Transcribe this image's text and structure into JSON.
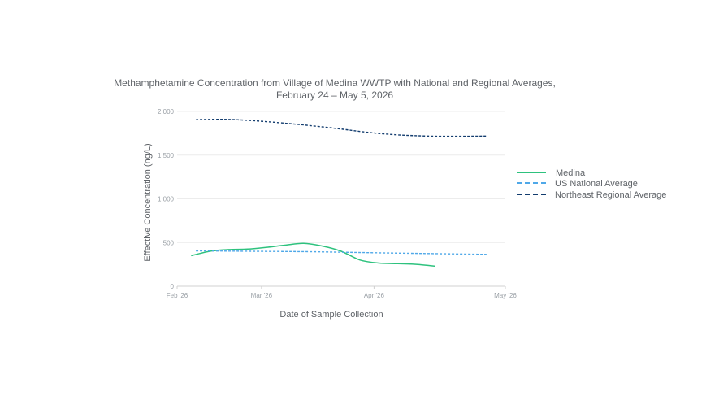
{
  "chart_data": {
    "type": "line",
    "title_line1": "Methamphetamine Concentration from Village of Medina WWTP with National and Regional Averages,",
    "title_line2": "February 24 – May 5, 2026",
    "xlabel": "Date of Sample Collection",
    "ylabel": "Effective Concentration (ng/L)",
    "xlim": [
      "2026-02-24",
      "2026-05-05"
    ],
    "ylim": [
      0,
      2000
    ],
    "x_ticks": [
      {
        "date": "2026-02-24",
        "label": "Feb '26"
      },
      {
        "date": "2026-03-14",
        "label": "Mar '26"
      },
      {
        "date": "2026-04-07",
        "label": "Apr '26"
      },
      {
        "date": "2026-05-05",
        "label": "May '26"
      }
    ],
    "y_ticks": [
      {
        "value": 0,
        "label": "0"
      },
      {
        "value": 500,
        "label": "500"
      },
      {
        "value": 1000,
        "label": "1,000"
      },
      {
        "value": 1500,
        "label": "1,500"
      },
      {
        "value": 2000,
        "label": "2,000"
      }
    ],
    "grid": true,
    "legend_position": "right",
    "series": [
      {
        "name": "Medina",
        "color": "#2ec27e",
        "dash": "solid",
        "points": [
          [
            "2026-02-27",
            350
          ],
          [
            "2026-03-03",
            400
          ],
          [
            "2026-03-07",
            420
          ],
          [
            "2026-03-11",
            425
          ],
          [
            "2026-03-15",
            445
          ],
          [
            "2026-03-19",
            470
          ],
          [
            "2026-03-23",
            490
          ],
          [
            "2026-03-27",
            460
          ],
          [
            "2026-03-31",
            400
          ],
          [
            "2026-04-04",
            300
          ],
          [
            "2026-04-08",
            265
          ],
          [
            "2026-04-12",
            258
          ],
          [
            "2026-04-16",
            250
          ],
          [
            "2026-04-20",
            230
          ]
        ]
      },
      {
        "name": "US National Average",
        "color": "#4fa8e8",
        "dash": "dashed",
        "points": [
          [
            "2026-02-28",
            405
          ],
          [
            "2026-03-12",
            400
          ],
          [
            "2026-03-24",
            395
          ],
          [
            "2026-04-05",
            385
          ],
          [
            "2026-04-17",
            375
          ],
          [
            "2026-05-01",
            365
          ]
        ]
      },
      {
        "name": "Northeast Regional Average",
        "color": "#123c6e",
        "dash": "dashed",
        "points": [
          [
            "2026-02-28",
            1905
          ],
          [
            "2026-03-06",
            1910
          ],
          [
            "2026-03-12",
            1895
          ],
          [
            "2026-03-18",
            1870
          ],
          [
            "2026-03-24",
            1840
          ],
          [
            "2026-03-30",
            1805
          ],
          [
            "2026-04-05",
            1765
          ],
          [
            "2026-04-11",
            1735
          ],
          [
            "2026-04-17",
            1720
          ],
          [
            "2026-04-23",
            1715
          ],
          [
            "2026-05-01",
            1718
          ]
        ]
      }
    ]
  }
}
